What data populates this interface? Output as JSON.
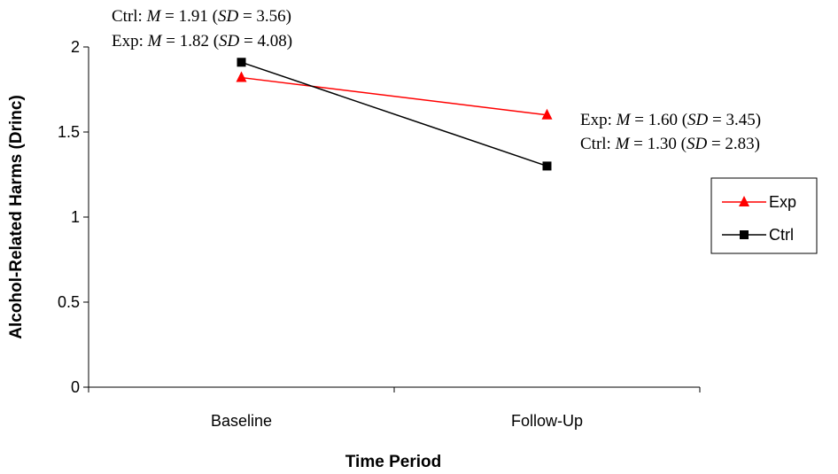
{
  "chart_data": {
    "type": "line",
    "categories": [
      "Baseline",
      "Follow-Up"
    ],
    "series": [
      {
        "name": "Exp",
        "values": [
          1.82,
          1.6
        ],
        "color": "#ff0000",
        "marker": "triangle"
      },
      {
        "name": "Ctrl",
        "values": [
          1.91,
          1.3
        ],
        "color": "#000000",
        "marker": "square"
      }
    ],
    "xlabel": "Time Period",
    "ylabel": "Alcohol-Related Harms (Drinc)",
    "ylim": [
      0,
      2
    ],
    "yticks": [
      "0",
      "0.5",
      "1",
      "1.5",
      "2"
    ],
    "grid": false,
    "legend": "right",
    "annotations": {
      "baseline_ctrl": {
        "group": "Ctrl:",
        "m": "1.91",
        "sd": "3.56"
      },
      "baseline_exp": {
        "group": "Exp:",
        "m": "1.82",
        "sd": "4.08"
      },
      "followup_exp": {
        "group": "Exp:",
        "m": "1.60",
        "sd": "3.45"
      },
      "followup_ctrl": {
        "group": "Ctrl:",
        "m": "1.30",
        "sd": "2.83"
      }
    }
  }
}
